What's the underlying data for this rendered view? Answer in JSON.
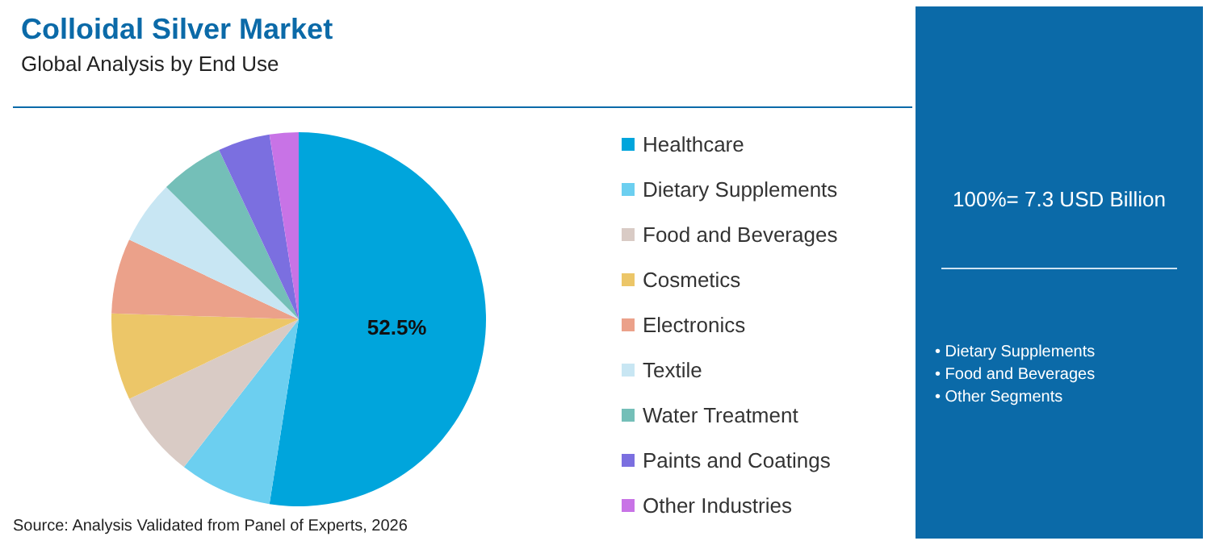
{
  "chart_data": {
    "type": "pie",
    "title": "Colloidal Silver Market",
    "subtitle": "Global Analysis by End Use",
    "categories": [
      "Healthcare",
      "Dietary Supplements",
      "Food and Beverages",
      "Cosmetics",
      "Electronics",
      "Textile",
      "Water Treatment",
      "Paints and Coatings",
      "Other Industries"
    ],
    "values": [
      52.5,
      8,
      7.5,
      7.5,
      6.5,
      5.5,
      5.5,
      4.5,
      2.5
    ],
    "colors": [
      "#00a5dc",
      "#6ccff0",
      "#d9cbc5",
      "#ecc668",
      "#eba18a",
      "#c8e6f3",
      "#74bfb8",
      "#7b6fe0",
      "#c873e6"
    ],
    "value_labels": [
      "52.5%",
      null,
      null,
      null,
      null,
      null,
      null,
      null,
      null
    ],
    "legend": "right",
    "annotations": [
      "100%= 7.3 USD Billion",
      "• Dietary Supplements",
      "• Food and Beverages",
      "• Other Segments",
      "Source: Analysis Validated from Panel of Experts, 2026"
    ]
  }
}
